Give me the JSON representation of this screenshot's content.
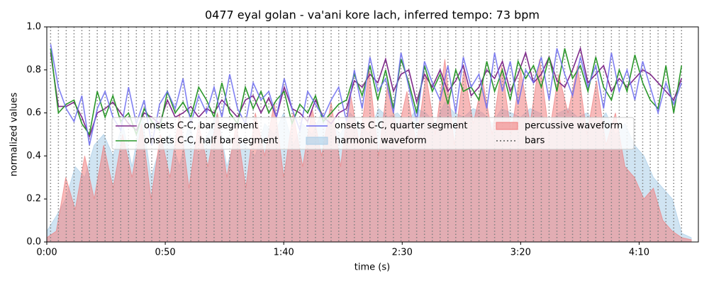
{
  "chart_data": {
    "type": "line",
    "title": "0477 eyal golan - va'ani kore lach, inferred tempo: 73 bpm",
    "xlabel": "time (s)",
    "ylabel": "normalized values",
    "xlim": [
      0,
      275
    ],
    "ylim": [
      0,
      1
    ],
    "xticks": [
      {
        "value": 0,
        "label": "0:00"
      },
      {
        "value": 50,
        "label": "0:50"
      },
      {
        "value": 100,
        "label": "1:40"
      },
      {
        "value": 150,
        "label": "2:30"
      },
      {
        "value": 200,
        "label": "3:20"
      },
      {
        "value": 250,
        "label": "4:10"
      }
    ],
    "yticks": [
      {
        "value": 0,
        "label": "0.0"
      },
      0.2,
      0.4,
      0.6,
      0.8,
      {
        "value": 1,
        "label": "1.0"
      }
    ],
    "x": [
      1.6,
      4.9,
      8.2,
      11.5,
      14.8,
      18.0,
      21.3,
      24.6,
      27.9,
      31.2,
      34.5,
      37.8,
      41.1,
      44.3,
      47.6,
      50.9,
      54.2,
      57.5,
      60.8,
      64.1,
      67.4,
      70.6,
      73.9,
      77.2,
      80.5,
      83.8,
      87.1,
      90.4,
      93.7,
      96.9,
      100.2,
      103.5,
      106.8,
      110.1,
      113.4,
      116.7,
      120.0,
      123.2,
      126.5,
      129.8,
      133.1,
      136.4,
      139.7,
      143.0,
      146.3,
      149.5,
      152.8,
      156.1,
      159.4,
      162.7,
      166.0,
      169.3,
      172.6,
      175.8,
      179.1,
      182.4,
      185.7,
      189.0,
      192.3,
      195.6,
      198.9,
      202.1,
      205.4,
      208.7,
      212.0,
      215.3,
      218.6,
      221.9,
      225.2,
      228.4,
      231.7,
      235.0,
      238.3,
      241.6,
      244.9,
      248.2,
      251.5,
      254.7,
      258.0,
      261.3,
      264.6,
      267.9
    ],
    "series": [
      {
        "name": "onsets C-C, bar segment",
        "color": "#7f2a8a",
        "kind": "line",
        "values": [
          0.88,
          0.63,
          0.63,
          0.65,
          0.58,
          0.49,
          0.6,
          0.62,
          0.65,
          0.6,
          0.55,
          0.52,
          0.6,
          0.58,
          0.55,
          0.66,
          0.58,
          0.6,
          0.63,
          0.58,
          0.62,
          0.6,
          0.66,
          0.62,
          0.58,
          0.66,
          0.68,
          0.6,
          0.67,
          0.58,
          0.72,
          0.62,
          0.6,
          0.56,
          0.66,
          0.58,
          0.55,
          0.6,
          0.62,
          0.75,
          0.72,
          0.78,
          0.74,
          0.85,
          0.7,
          0.78,
          0.8,
          0.65,
          0.78,
          0.72,
          0.8,
          0.7,
          0.75,
          0.82,
          0.68,
          0.72,
          0.8,
          0.76,
          0.84,
          0.7,
          0.78,
          0.88,
          0.74,
          0.78,
          0.86,
          0.75,
          0.72,
          0.8,
          0.9,
          0.74,
          0.78,
          0.82,
          0.7,
          0.76,
          0.72,
          0.76,
          0.8,
          0.78,
          0.74,
          0.7,
          0.66,
          0.76
        ]
      },
      {
        "name": "onsets C-C, half bar segment",
        "color": "#2a972a",
        "kind": "line",
        "values": [
          0.9,
          0.6,
          0.64,
          0.66,
          0.55,
          0.5,
          0.7,
          0.58,
          0.68,
          0.56,
          0.6,
          0.5,
          0.62,
          0.56,
          0.52,
          0.7,
          0.6,
          0.65,
          0.58,
          0.72,
          0.66,
          0.58,
          0.74,
          0.6,
          0.55,
          0.72,
          0.62,
          0.7,
          0.6,
          0.66,
          0.7,
          0.55,
          0.64,
          0.6,
          0.68,
          0.56,
          0.6,
          0.64,
          0.66,
          0.78,
          0.68,
          0.82,
          0.66,
          0.8,
          0.62,
          0.85,
          0.74,
          0.6,
          0.82,
          0.7,
          0.78,
          0.64,
          0.8,
          0.7,
          0.72,
          0.66,
          0.84,
          0.7,
          0.8,
          0.66,
          0.84,
          0.76,
          0.82,
          0.72,
          0.86,
          0.7,
          0.9,
          0.76,
          0.82,
          0.7,
          0.86,
          0.72,
          0.66,
          0.8,
          0.7,
          0.87,
          0.74,
          0.66,
          0.62,
          0.82,
          0.6,
          0.82
        ]
      },
      {
        "name": "onsets C-C, quarter segment",
        "color": "#6b6bf0",
        "kind": "line",
        "values": [
          0.92,
          0.72,
          0.62,
          0.56,
          0.68,
          0.45,
          0.62,
          0.7,
          0.58,
          0.52,
          0.72,
          0.55,
          0.66,
          0.45,
          0.64,
          0.7,
          0.62,
          0.76,
          0.55,
          0.68,
          0.6,
          0.72,
          0.58,
          0.78,
          0.62,
          0.55,
          0.74,
          0.66,
          0.7,
          0.58,
          0.76,
          0.62,
          0.52,
          0.7,
          0.64,
          0.58,
          0.66,
          0.72,
          0.56,
          0.8,
          0.62,
          0.86,
          0.7,
          0.76,
          0.6,
          0.88,
          0.72,
          0.56,
          0.84,
          0.74,
          0.66,
          0.82,
          0.6,
          0.86,
          0.72,
          0.78,
          0.62,
          0.88,
          0.7,
          0.84,
          0.64,
          0.8,
          0.74,
          0.86,
          0.66,
          0.9,
          0.78,
          0.68,
          0.86,
          0.72,
          0.82,
          0.62,
          0.88,
          0.7,
          0.8,
          0.66,
          0.84,
          0.72,
          0.6,
          0.74,
          0.64,
          0.74
        ]
      },
      {
        "name": "harmonic waveform",
        "color": "#a9cde8",
        "kind": "area",
        "x": [
          0,
          4,
          8,
          12,
          16,
          20,
          24,
          28,
          32,
          36,
          40,
          44,
          48,
          52,
          56,
          60,
          64,
          68,
          72,
          76,
          80,
          84,
          88,
          92,
          96,
          100,
          104,
          108,
          112,
          116,
          120,
          124,
          128,
          132,
          136,
          140,
          144,
          148,
          152,
          156,
          160,
          164,
          168,
          172,
          176,
          180,
          184,
          188,
          192,
          196,
          200,
          204,
          208,
          212,
          216,
          220,
          224,
          228,
          232,
          236,
          240,
          244,
          248,
          252,
          256,
          260,
          264,
          268,
          272
        ],
        "values": [
          0.05,
          0.12,
          0.2,
          0.35,
          0.3,
          0.45,
          0.5,
          0.4,
          0.55,
          0.35,
          0.6,
          0.3,
          0.45,
          0.5,
          0.35,
          0.55,
          0.4,
          0.5,
          0.6,
          0.35,
          0.5,
          0.45,
          0.4,
          0.55,
          0.5,
          0.6,
          0.45,
          0.55,
          0.5,
          0.6,
          0.55,
          0.5,
          0.6,
          0.55,
          0.5,
          0.62,
          0.58,
          0.6,
          0.55,
          0.62,
          0.6,
          0.55,
          0.65,
          0.6,
          0.58,
          0.62,
          0.6,
          0.55,
          0.62,
          0.6,
          0.58,
          0.62,
          0.6,
          0.55,
          0.6,
          0.62,
          0.58,
          0.6,
          0.55,
          0.6,
          0.5,
          0.55,
          0.45,
          0.4,
          0.3,
          0.25,
          0.2,
          0.04,
          0.02
        ]
      },
      {
        "name": "percussive waveform",
        "color": "#f07f7f",
        "kind": "area",
        "x": [
          0,
          4,
          8,
          12,
          16,
          20,
          24,
          28,
          32,
          36,
          40,
          44,
          48,
          52,
          56,
          60,
          64,
          68,
          72,
          76,
          80,
          84,
          88,
          92,
          96,
          100,
          104,
          108,
          112,
          116,
          120,
          124,
          128,
          132,
          136,
          140,
          144,
          148,
          152,
          156,
          160,
          164,
          168,
          172,
          176,
          180,
          184,
          188,
          192,
          196,
          200,
          204,
          208,
          212,
          216,
          220,
          224,
          228,
          232,
          236,
          240,
          244,
          248,
          252,
          256,
          260,
          264,
          268,
          272
        ],
        "values": [
          0.02,
          0.05,
          0.3,
          0.15,
          0.4,
          0.2,
          0.45,
          0.25,
          0.5,
          0.3,
          0.55,
          0.2,
          0.5,
          0.3,
          0.6,
          0.25,
          0.55,
          0.35,
          0.6,
          0.3,
          0.55,
          0.25,
          0.6,
          0.4,
          0.65,
          0.3,
          0.6,
          0.35,
          0.62,
          0.4,
          0.65,
          0.35,
          0.7,
          0.45,
          0.8,
          0.4,
          0.75,
          0.5,
          0.7,
          0.45,
          0.78,
          0.5,
          0.85,
          0.45,
          0.8,
          0.55,
          0.75,
          0.5,
          0.82,
          0.5,
          0.8,
          0.55,
          0.85,
          0.5,
          0.78,
          0.6,
          0.82,
          0.5,
          0.75,
          0.45,
          0.6,
          0.35,
          0.3,
          0.2,
          0.25,
          0.1,
          0.05,
          0.02,
          0.01
        ]
      },
      {
        "name": "bars",
        "color": "#808080",
        "kind": "vlines"
      }
    ]
  }
}
